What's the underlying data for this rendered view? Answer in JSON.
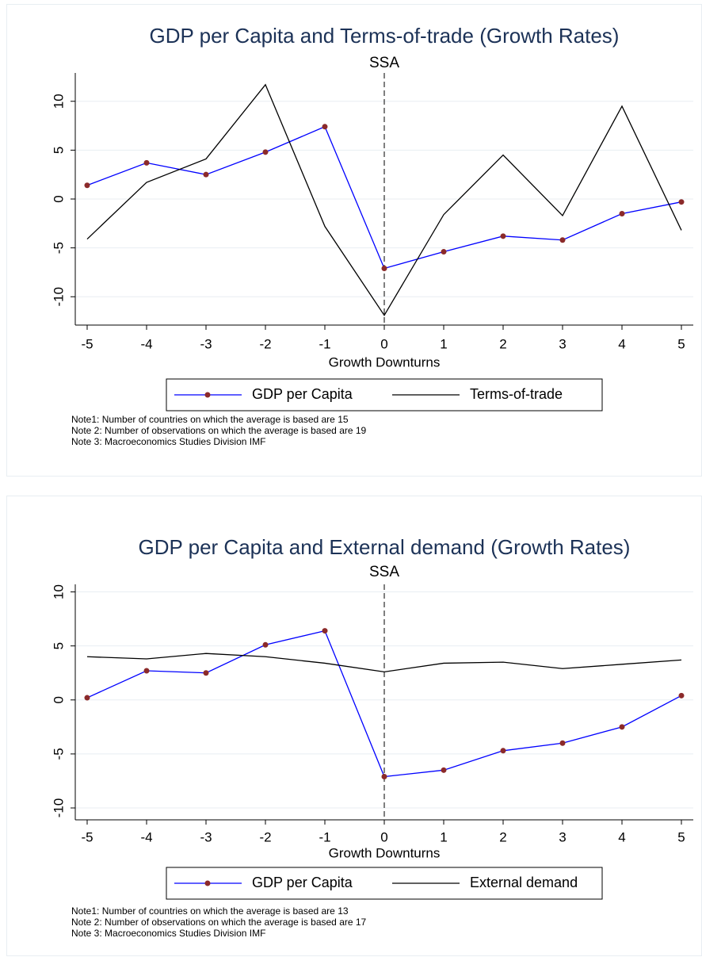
{
  "chart_data": [
    {
      "type": "line",
      "title": "GDP per Capita and Terms-of-trade (Growth Rates)",
      "subtitle": "SSA",
      "x_label": "Growth Downturns",
      "x": [
        -5,
        -4,
        -3,
        -2,
        -1,
        0,
        1,
        2,
        3,
        4,
        5
      ],
      "xlim": [
        -5.2,
        5.2
      ],
      "xticks": [
        -5,
        -4,
        -3,
        -2,
        -1,
        0,
        1,
        2,
        3,
        4,
        5
      ],
      "ylim": [
        -12.9,
        12.9
      ],
      "yticks": [
        -10,
        -5,
        0,
        5,
        10
      ],
      "grid": true,
      "vline": 0,
      "series": [
        {
          "name": "GDP per Capita",
          "color": "#0000ff",
          "marker_color": "#8b2a2a",
          "values": [
            1.4,
            3.7,
            2.5,
            4.8,
            7.4,
            -7.1,
            -5.4,
            -3.8,
            -4.2,
            -1.5,
            -0.3
          ]
        },
        {
          "name": "Terms-of-trade",
          "color": "#000000",
          "values": [
            -4.1,
            1.7,
            4.1,
            11.7,
            -2.8,
            -11.9,
            -1.6,
            4.5,
            -1.7,
            9.5,
            -3.2
          ]
        }
      ],
      "notes": [
        "Note1: Number of countries on which the average is based are 15",
        "Note 2: Number of observations on which the average is based are 19",
        "Note 3: Macroeconomics Studies Division IMF"
      ]
    },
    {
      "type": "line",
      "title": "GDP per Capita and External demand (Growth Rates)",
      "subtitle": "SSA",
      "x_label": "Growth Downturns",
      "x": [
        -5,
        -4,
        -3,
        -2,
        -1,
        0,
        1,
        2,
        3,
        4,
        5
      ],
      "xlim": [
        -5.2,
        5.2
      ],
      "xticks": [
        -5,
        -4,
        -3,
        -2,
        -1,
        0,
        1,
        2,
        3,
        4,
        5
      ],
      "ylim": [
        -11.1,
        10.7
      ],
      "yticks": [
        -10,
        -5,
        0,
        5,
        10
      ],
      "grid": true,
      "vline": 0,
      "series": [
        {
          "name": "GDP per Capita",
          "color": "#0000ff",
          "marker_color": "#8b2a2a",
          "values": [
            0.2,
            2.7,
            2.5,
            5.1,
            6.4,
            -7.1,
            -6.5,
            -4.7,
            -4.0,
            -2.5,
            0.4
          ]
        },
        {
          "name": "External demand",
          "color": "#000000",
          "values": [
            4.0,
            3.8,
            4.3,
            4.0,
            3.4,
            2.6,
            3.4,
            3.5,
            2.9,
            3.3,
            3.7
          ]
        }
      ],
      "notes": [
        "Note1: Number of countries on which the average is based are 13",
        "Note 2: Number of observations on which the average is based are 17",
        "Note 3: Macroeconomics Studies Division IMF"
      ]
    }
  ]
}
